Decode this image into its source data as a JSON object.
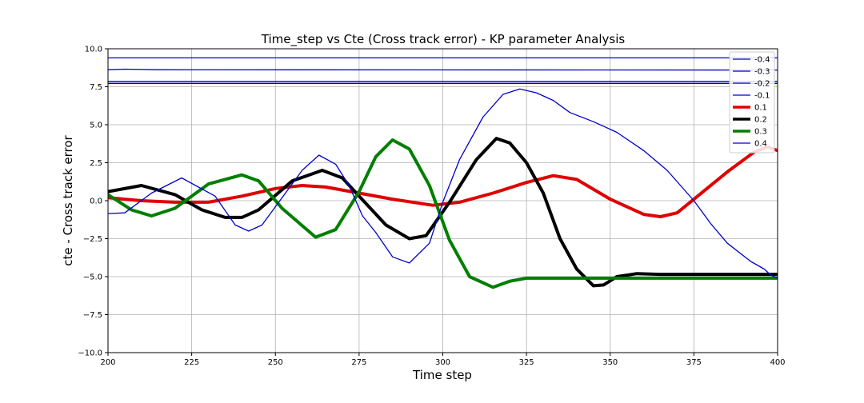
{
  "chart_data": {
    "type": "line",
    "title": "Time_step vs Cte (Cross track error) - KP parameter Analysis",
    "xlabel": "Time step",
    "ylabel": "cte - Cross track error",
    "xlim": [
      200,
      400
    ],
    "ylim": [
      -10,
      10
    ],
    "xticks": [
      200,
      225,
      250,
      275,
      300,
      325,
      350,
      375,
      400
    ],
    "yticks": [
      -10.0,
      -7.5,
      -5.0,
      -2.5,
      0.0,
      2.5,
      5.0,
      7.5,
      10.0
    ],
    "xtick_labels": [
      "200",
      "225",
      "250",
      "275",
      "300",
      "325",
      "350",
      "375",
      "400"
    ],
    "ytick_labels": [
      "−10.0",
      "−7.5",
      "−5.0",
      "−2.5",
      "0.0",
      "2.5",
      "5.0",
      "7.5",
      "10.0"
    ],
    "grid": true,
    "legend_position": "top-right",
    "series": [
      {
        "name": "-0.4",
        "color": "#0000cc",
        "width": 1.3,
        "x": [
          200,
          210,
          400
        ],
        "y": [
          9.4,
          9.4,
          9.4
        ]
      },
      {
        "name": "-0.3",
        "color": "#0000cc",
        "width": 1.3,
        "x": [
          200,
          205,
          215,
          400
        ],
        "y": [
          8.62,
          8.66,
          8.62,
          8.6
        ]
      },
      {
        "name": "-0.2",
        "color": "#0000cc",
        "width": 1.3,
        "x": [
          200,
          400
        ],
        "y": [
          7.85,
          7.85
        ]
      },
      {
        "name": "-0.1",
        "color": "#0000cc",
        "width": 1.3,
        "x": [
          200,
          400
        ],
        "y": [
          7.72,
          7.72
        ]
      },
      {
        "name": "0.1",
        "color": "#e00000",
        "width": 4,
        "x": [
          200,
          210,
          220,
          230,
          240,
          250,
          258,
          265,
          275,
          285,
          297,
          305,
          315,
          325,
          333,
          340,
          350,
          360,
          365,
          370,
          375,
          385,
          393,
          397,
          400
        ],
        "y": [
          0.2,
          0.0,
          -0.1,
          -0.1,
          0.3,
          0.8,
          1.0,
          0.9,
          0.5,
          0.1,
          -0.3,
          -0.1,
          0.5,
          1.2,
          1.65,
          1.4,
          0.1,
          -0.9,
          -1.05,
          -0.8,
          0.1,
          1.9,
          3.2,
          3.55,
          3.3
        ]
      },
      {
        "name": "0.2",
        "color": "#000000",
        "width": 4,
        "x": [
          200,
          210,
          220,
          228,
          235,
          240,
          245,
          255,
          264,
          270,
          275,
          283,
          290,
          295,
          302,
          310,
          316,
          320,
          325,
          330,
          335,
          340,
          345,
          348,
          352,
          358,
          365,
          375,
          400
        ],
        "y": [
          0.6,
          1.0,
          0.4,
          -0.6,
          -1.1,
          -1.1,
          -0.6,
          1.3,
          2.0,
          1.5,
          0.3,
          -1.6,
          -2.5,
          -2.3,
          -0.1,
          2.7,
          4.1,
          3.8,
          2.5,
          0.5,
          -2.5,
          -4.5,
          -5.6,
          -5.55,
          -5.0,
          -4.8,
          -4.85,
          -4.85,
          -4.85
        ]
      },
      {
        "name": "0.3",
        "color": "#007f00",
        "width": 4,
        "x": [
          200,
          207,
          213,
          220,
          230,
          240,
          245,
          252,
          262,
          268,
          275,
          280,
          285,
          290,
          296,
          302,
          308,
          315,
          320,
          325,
          335,
          345,
          400
        ],
        "y": [
          0.4,
          -0.6,
          -1.0,
          -0.5,
          1.1,
          1.7,
          1.3,
          -0.5,
          -2.4,
          -1.9,
          0.6,
          2.9,
          4.0,
          3.4,
          1.0,
          -2.6,
          -5.0,
          -5.7,
          -5.3,
          -5.1,
          -5.1,
          -5.1,
          -5.1
        ]
      },
      {
        "name": "0.4",
        "color": "#0000cc",
        "width": 1.3,
        "x": [
          200,
          205,
          213,
          222,
          232,
          238,
          242,
          246,
          252,
          258,
          263,
          268,
          272,
          276,
          280,
          285,
          290,
          296,
          300,
          305,
          312,
          318,
          323,
          328,
          333,
          338,
          345,
          352,
          360,
          367,
          375,
          380,
          385,
          392,
          396,
          398,
          400
        ],
        "y": [
          -0.85,
          -0.8,
          0.5,
          1.5,
          0.3,
          -1.6,
          -2.0,
          -1.6,
          0.2,
          2.0,
          3.0,
          2.4,
          1.0,
          -1.0,
          -2.1,
          -3.7,
          -4.1,
          -2.8,
          -0.1,
          2.7,
          5.5,
          7.0,
          7.35,
          7.1,
          6.6,
          5.8,
          5.2,
          4.5,
          3.3,
          2.0,
          0.0,
          -1.5,
          -2.8,
          -4.0,
          -4.5,
          -4.9,
          -5.1
        ]
      }
    ]
  }
}
